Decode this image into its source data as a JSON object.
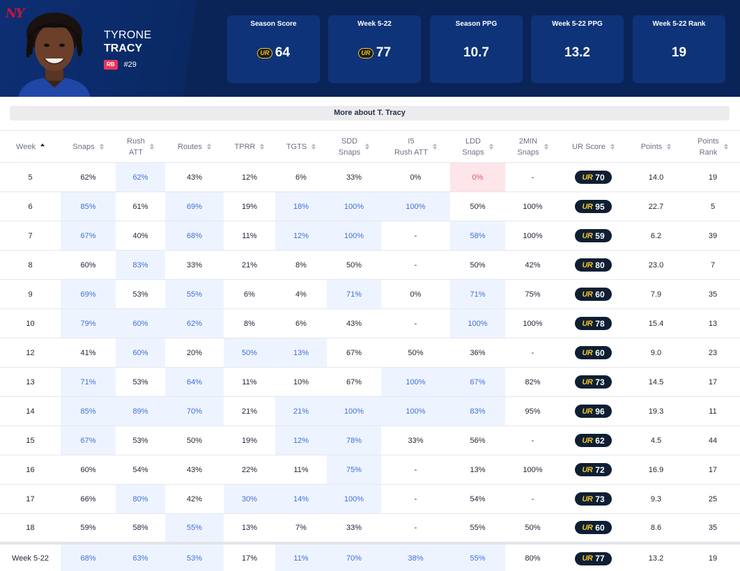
{
  "player": {
    "first_name": "TYRONE",
    "last_name": "TRACY",
    "position": "RB",
    "jersey": "#29",
    "team_logo": "NY"
  },
  "stats": [
    {
      "label": "Season Score",
      "value": "64",
      "icon": "ur-coin-icon"
    },
    {
      "label": "Week 5-22",
      "value": "77",
      "icon": "ur-coin-icon"
    },
    {
      "label": "Season PPG",
      "value": "10.7"
    },
    {
      "label": "Week 5-22 PPG",
      "value": "13.2"
    },
    {
      "label": "Week 5-22 Rank",
      "value": "19"
    }
  ],
  "more_label": "More about T. Tracy",
  "ur_mark": "UR",
  "colors": {
    "header_bg": "#0b2a6a",
    "card_bg": "#0f3378",
    "highlight_bg": "#eef4ff",
    "highlight_text": "#3f6fd8",
    "warning_bg": "#fde5ea",
    "pill_bg": "#0e1f33",
    "ur_gold": "#f3c623"
  },
  "table": {
    "columns": [
      {
        "l1": "Week",
        "l2": "",
        "sorted": true
      },
      {
        "l1": "Snaps",
        "l2": ""
      },
      {
        "l1": "Rush",
        "l2": "ATT"
      },
      {
        "l1": "Routes",
        "l2": ""
      },
      {
        "l1": "TPRR",
        "l2": ""
      },
      {
        "l1": "TGTS",
        "l2": ""
      },
      {
        "l1": "SDD",
        "l2": "Snaps"
      },
      {
        "l1": "I5",
        "l2": "Rush ATT"
      },
      {
        "l1": "LDD",
        "l2": "Snaps"
      },
      {
        "l1": "2MIN",
        "l2": "Snaps"
      },
      {
        "l1": "UR Score",
        "l2": ""
      },
      {
        "l1": "Points",
        "l2": ""
      },
      {
        "l1": "Points",
        "l2": "Rank"
      }
    ],
    "rows": [
      {
        "cells": [
          "5",
          "62%",
          "62%",
          "43%",
          "12%",
          "6%",
          "33%",
          "0%",
          "0%",
          "-",
          "70",
          "14.0",
          "19"
        ],
        "hl": [
          2
        ],
        "bad": [
          8
        ]
      },
      {
        "cells": [
          "6",
          "85%",
          "61%",
          "69%",
          "19%",
          "18%",
          "100%",
          "100%",
          "50%",
          "100%",
          "95",
          "22.7",
          "5"
        ],
        "hl": [
          1,
          3,
          5,
          6,
          7
        ],
        "bad": []
      },
      {
        "cells": [
          "7",
          "67%",
          "40%",
          "68%",
          "11%",
          "12%",
          "100%",
          "-",
          "58%",
          "100%",
          "59",
          "6.2",
          "39"
        ],
        "hl": [
          1,
          3,
          5,
          6,
          8
        ],
        "bad": []
      },
      {
        "cells": [
          "8",
          "60%",
          "83%",
          "33%",
          "21%",
          "8%",
          "50%",
          "-",
          "50%",
          "42%",
          "80",
          "23.0",
          "7"
        ],
        "hl": [
          2
        ],
        "bad": []
      },
      {
        "cells": [
          "9",
          "69%",
          "53%",
          "55%",
          "6%",
          "4%",
          "71%",
          "0%",
          "71%",
          "75%",
          "60",
          "7.9",
          "35"
        ],
        "hl": [
          1,
          3,
          6,
          8
        ],
        "bad": []
      },
      {
        "cells": [
          "10",
          "79%",
          "60%",
          "62%",
          "8%",
          "6%",
          "43%",
          "-",
          "100%",
          "100%",
          "78",
          "15.4",
          "13"
        ],
        "hl": [
          1,
          2,
          3,
          8
        ],
        "bad": []
      },
      {
        "cells": [
          "12",
          "41%",
          "60%",
          "20%",
          "50%",
          "13%",
          "67%",
          "50%",
          "36%",
          "-",
          "60",
          "9.0",
          "23"
        ],
        "hl": [
          2,
          4,
          5
        ],
        "bad": []
      },
      {
        "cells": [
          "13",
          "71%",
          "53%",
          "64%",
          "11%",
          "10%",
          "67%",
          "100%",
          "67%",
          "82%",
          "73",
          "14.5",
          "17"
        ],
        "hl": [
          1,
          3,
          7,
          8
        ],
        "bad": []
      },
      {
        "cells": [
          "14",
          "85%",
          "89%",
          "70%",
          "21%",
          "21%",
          "100%",
          "100%",
          "83%",
          "95%",
          "96",
          "19.3",
          "11"
        ],
        "hl": [
          1,
          2,
          3,
          5,
          6,
          7,
          8
        ],
        "bad": []
      },
      {
        "cells": [
          "15",
          "67%",
          "53%",
          "50%",
          "19%",
          "12%",
          "78%",
          "33%",
          "56%",
          "-",
          "62",
          "4.5",
          "44"
        ],
        "hl": [
          1,
          5,
          6
        ],
        "bad": []
      },
      {
        "cells": [
          "16",
          "60%",
          "54%",
          "43%",
          "22%",
          "11%",
          "75%",
          "-",
          "13%",
          "100%",
          "72",
          "16.9",
          "17"
        ],
        "hl": [
          6
        ],
        "bad": []
      },
      {
        "cells": [
          "17",
          "66%",
          "80%",
          "42%",
          "30%",
          "14%",
          "100%",
          "-",
          "54%",
          "-",
          "73",
          "9.3",
          "25"
        ],
        "hl": [
          2,
          4,
          5,
          6
        ],
        "bad": []
      },
      {
        "cells": [
          "18",
          "59%",
          "58%",
          "55%",
          "13%",
          "7%",
          "33%",
          "-",
          "55%",
          "50%",
          "60",
          "8.6",
          "35"
        ],
        "hl": [
          3
        ],
        "bad": []
      }
    ],
    "summary": {
      "cells": [
        "Week 5-22",
        "68%",
        "63%",
        "53%",
        "17%",
        "11%",
        "70%",
        "38%",
        "55%",
        "80%",
        "77",
        "13.2",
        "19"
      ],
      "hl": [
        1,
        2,
        3,
        5,
        6,
        7,
        8
      ],
      "bad": []
    }
  }
}
